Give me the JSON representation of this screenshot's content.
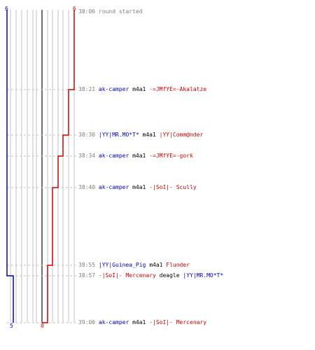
{
  "colors": {
    "blue_team": "#0000c0",
    "red_team": "#cc0000",
    "time": "#808080",
    "grid": "#c0c0c0",
    "dash": "#c0c0c0"
  },
  "counts": {
    "blue_start": "6",
    "red_start": "6",
    "blue_end": "5",
    "red_end": "0"
  },
  "events": [
    {
      "time": "38:06",
      "message": "round started"
    },
    {
      "time": "38:21",
      "killer": "ak-camper",
      "killer_team": "blue",
      "weapon": "m4a1",
      "victim": "-=JMfYE=-Akalatze",
      "victim_team": "red"
    },
    {
      "time": "38:30",
      "killer": "|YY|MR.MO*T*",
      "killer_team": "blue",
      "weapon": "m4a1",
      "victim": "|YY|Comm@nder",
      "victim_team": "red"
    },
    {
      "time": "38:34",
      "killer": "ak-camper",
      "killer_team": "blue",
      "weapon": "m4a1",
      "victim": "-=JMfYE=-gork",
      "victim_team": "red"
    },
    {
      "time": "38:40",
      "killer": "ak-camper",
      "killer_team": "blue",
      "weapon": "m4a1",
      "victim": "-|SoI|- Scully",
      "victim_team": "red"
    },
    {
      "time": "38:55",
      "killer": "|YY|Guinea_Pig",
      "killer_team": "blue",
      "weapon": "m4a1",
      "victim": "Flunder",
      "victim_team": "red"
    },
    {
      "time": "38:57",
      "killer": "-|SoI|- Mercenary",
      "killer_team": "red",
      "weapon": "deagle",
      "victim": "|YY|MR.MO*T*",
      "victim_team": "blue"
    },
    {
      "time": "39:06",
      "killer": "ak-camper",
      "killer_team": "blue",
      "weapon": "m4a1",
      "victim": "-|SoI|- Mercenary",
      "victim_team": "red"
    }
  ]
}
